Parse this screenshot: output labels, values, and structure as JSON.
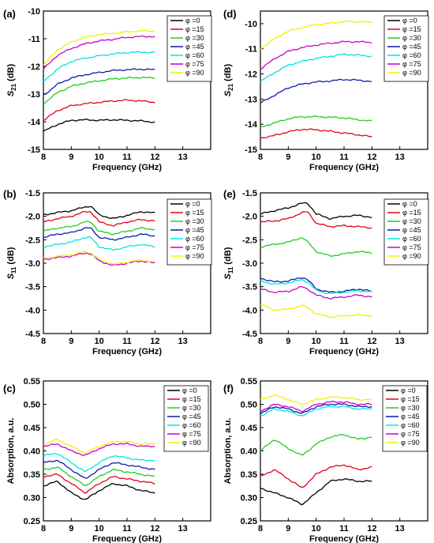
{
  "legend_labels": [
    "φ =0",
    "φ =15",
    "φ =30",
    "φ =45",
    "φ =60",
    "φ =75",
    "φ =90"
  ],
  "series_colors": [
    "#000000",
    "#e3001b",
    "#22cc22",
    "#0a1aa8",
    "#00e5e5",
    "#cc00cc",
    "#f2f200"
  ],
  "chart_data": [
    {
      "panel": "(a)",
      "type": "line",
      "xlabel": "Frequency (GHz)",
      "ylabel": "S21 (dB)",
      "ylabel_main": "S",
      "ylabel_sub": "21",
      "ylabel_unit": " (dB)",
      "xlim": [
        8,
        14
      ],
      "ylim": [
        -15,
        -10
      ],
      "xticks": [
        8,
        9,
        10,
        11,
        12,
        13
      ],
      "yticks": [
        -15,
        -14,
        -13,
        -12,
        -11,
        -10
      ],
      "legend_position": "top-right",
      "x": [
        8,
        8.5,
        9,
        9.5,
        10,
        10.5,
        11,
        11.5,
        12
      ],
      "series": [
        {
          "name": "φ =0",
          "values": [
            -14.35,
            -14.1,
            -13.95,
            -13.93,
            -13.95,
            -13.93,
            -13.95,
            -13.97,
            -14.02
          ]
        },
        {
          "name": "φ =15",
          "values": [
            -13.95,
            -13.6,
            -13.42,
            -13.35,
            -13.3,
            -13.25,
            -13.22,
            -13.25,
            -13.3
          ]
        },
        {
          "name": "φ =30",
          "values": [
            -13.35,
            -12.95,
            -12.72,
            -12.6,
            -12.52,
            -12.45,
            -12.42,
            -12.4,
            -12.42
          ]
        },
        {
          "name": "φ =45",
          "values": [
            -13.05,
            -12.65,
            -12.42,
            -12.3,
            -12.22,
            -12.15,
            -12.12,
            -12.1,
            -12.12
          ]
        },
        {
          "name": "φ =60",
          "values": [
            -12.55,
            -12.1,
            -11.82,
            -11.7,
            -11.62,
            -11.55,
            -11.5,
            -11.48,
            -11.5
          ]
        },
        {
          "name": "φ =75",
          "values": [
            -12.1,
            -11.6,
            -11.35,
            -11.18,
            -11.08,
            -11.02,
            -10.95,
            -10.92,
            -10.92
          ]
        },
        {
          "name": "φ =90",
          "values": [
            -11.95,
            -11.4,
            -11.12,
            -10.95,
            -10.85,
            -10.8,
            -10.75,
            -10.72,
            -10.72
          ]
        }
      ]
    },
    {
      "panel": "(d)",
      "type": "line",
      "xlabel": "Frequency (GHz)",
      "ylabel": "S21 (dB)",
      "ylabel_main": "S",
      "ylabel_sub": "21",
      "ylabel_unit": " (dB)",
      "xlim": [
        8,
        14
      ],
      "ylim": [
        -15,
        -9.5
      ],
      "xticks": [
        8,
        9,
        10,
        11,
        12,
        13
      ],
      "yticks": [
        -15,
        -14,
        -13,
        -12,
        -11,
        -10
      ],
      "legend_position": "top-right",
      "x": [
        8,
        8.5,
        9,
        9.5,
        10,
        10.5,
        11,
        11.5,
        12
      ],
      "series": [
        {
          "name": "φ =0",
          "values": [
            null,
            null,
            null,
            null,
            null,
            null,
            null,
            null,
            null
          ]
        },
        {
          "name": "φ =15",
          "values": [
            -14.55,
            -14.45,
            -14.3,
            -14.2,
            -14.22,
            -14.28,
            -14.35,
            -14.42,
            -14.5
          ]
        },
        {
          "name": "φ =30",
          "values": [
            -14.12,
            -13.95,
            -13.78,
            -13.7,
            -13.7,
            -13.72,
            -13.75,
            -13.82,
            -13.88
          ]
        },
        {
          "name": "φ =45",
          "values": [
            -13.15,
            -12.85,
            -12.55,
            -12.4,
            -12.32,
            -12.28,
            -12.22,
            -12.25,
            -12.3
          ]
        },
        {
          "name": "φ =60",
          "values": [
            -12.3,
            -11.95,
            -11.65,
            -11.5,
            -11.38,
            -11.3,
            -11.22,
            -11.25,
            -11.3
          ]
        },
        {
          "name": "φ =75",
          "values": [
            -11.8,
            -11.4,
            -11.1,
            -10.95,
            -10.85,
            -10.78,
            -10.72,
            -10.72,
            -10.75
          ]
        },
        {
          "name": "φ =90",
          "values": [
            -11.0,
            -10.6,
            -10.3,
            -10.15,
            -10.05,
            -9.98,
            -9.92,
            -9.92,
            -9.95
          ]
        }
      ]
    },
    {
      "panel": "(b)",
      "type": "line",
      "xlabel": "Frequency (GHz)",
      "ylabel": "S11 (dB)",
      "ylabel_main": "S",
      "ylabel_sub": "11",
      "ylabel_unit": " (dB)",
      "xlim": [
        8,
        14
      ],
      "ylim": [
        -4.5,
        -1.5
      ],
      "xticks": [
        8,
        9,
        10,
        11,
        12,
        13
      ],
      "yticks": [
        -4.5,
        -4.0,
        -3.5,
        -3.0,
        -2.5,
        -2.0,
        -1.5
      ],
      "legend_position": "top-right",
      "x": [
        8,
        8.5,
        9,
        9.5,
        9.7,
        10,
        10.5,
        11,
        11.5,
        12
      ],
      "series": [
        {
          "name": "φ =0",
          "values": [
            -1.97,
            -1.92,
            -1.88,
            -1.8,
            -1.78,
            -1.97,
            -2.05,
            -1.98,
            -1.9,
            -1.93
          ]
        },
        {
          "name": "φ =15",
          "values": [
            -2.12,
            -2.05,
            -2.0,
            -1.9,
            -1.9,
            -2.12,
            -2.2,
            -2.12,
            -2.07,
            -2.1
          ]
        },
        {
          "name": "φ =30",
          "values": [
            -2.32,
            -2.25,
            -2.22,
            -2.12,
            -2.12,
            -2.32,
            -2.38,
            -2.32,
            -2.25,
            -2.28
          ]
        },
        {
          "name": "φ =45",
          "values": [
            -2.45,
            -2.38,
            -2.35,
            -2.25,
            -2.25,
            -2.45,
            -2.5,
            -2.45,
            -2.38,
            -2.42
          ]
        },
        {
          "name": "φ =60",
          "values": [
            -2.65,
            -2.6,
            -2.55,
            -2.45,
            -2.45,
            -2.65,
            -2.72,
            -2.65,
            -2.6,
            -2.65
          ]
        },
        {
          "name": "φ =75",
          "values": [
            -2.92,
            -2.88,
            -2.85,
            -2.78,
            -2.8,
            -2.95,
            -3.05,
            -3.0,
            -2.95,
            -3.0
          ]
        },
        {
          "name": "φ =90",
          "values": [
            -2.9,
            -2.85,
            -2.82,
            -2.75,
            -2.78,
            -2.92,
            -3.02,
            -2.98,
            -2.93,
            -2.98
          ]
        }
      ]
    },
    {
      "panel": "(e)",
      "type": "line",
      "xlabel": "Frequency (GHz)",
      "ylabel": "S11 (dB)",
      "ylabel_main": "S",
      "ylabel_sub": "11",
      "ylabel_unit": " (dB)",
      "xlim": [
        8,
        14
      ],
      "ylim": [
        -4.5,
        -1.5
      ],
      "xticks": [
        8,
        9,
        10,
        11,
        12,
        13
      ],
      "yticks": [
        -4.5,
        -4.0,
        -3.5,
        -3.0,
        -2.5,
        -2.0,
        -1.5
      ],
      "legend_position": "top-right",
      "x": [
        8,
        8.5,
        9,
        9.5,
        9.7,
        10,
        10.5,
        11,
        11.5,
        12
      ],
      "series": [
        {
          "name": "φ =0",
          "values": [
            -1.95,
            -1.88,
            -1.82,
            -1.72,
            -1.72,
            -1.95,
            -2.05,
            -2.0,
            -1.98,
            -2.02
          ]
        },
        {
          "name": "φ =15",
          "values": [
            -2.12,
            -2.1,
            -2.05,
            -1.92,
            -1.9,
            -2.15,
            -2.22,
            -2.2,
            -2.22,
            -2.25
          ]
        },
        {
          "name": "φ =30",
          "values": [
            -2.65,
            -2.6,
            -2.55,
            -2.45,
            -2.55,
            -2.75,
            -2.85,
            -2.8,
            -2.75,
            -2.78
          ]
        },
        {
          "name": "φ =45",
          "values": [
            -3.32,
            -3.4,
            -3.38,
            -3.3,
            -3.35,
            -3.55,
            -3.62,
            -3.6,
            -3.55,
            -3.6
          ]
        },
        {
          "name": "φ =60",
          "values": [
            -3.38,
            -3.45,
            -3.42,
            -3.35,
            -3.4,
            -3.58,
            -3.65,
            -3.62,
            -3.58,
            -3.62
          ]
        },
        {
          "name": "φ =75",
          "values": [
            -3.55,
            -3.62,
            -3.6,
            -3.5,
            -3.55,
            -3.68,
            -3.75,
            -3.72,
            -3.68,
            -3.72
          ]
        },
        {
          "name": "φ =90",
          "values": [
            -3.88,
            -4.0,
            -3.98,
            -3.9,
            -3.95,
            -4.08,
            -4.15,
            -4.12,
            -4.1,
            -4.12
          ]
        }
      ]
    },
    {
      "panel": "(c)",
      "type": "line",
      "xlabel": "Frequency (GHz)",
      "ylabel": "Absorption, a.u.",
      "xlim": [
        8,
        14
      ],
      "ylim": [
        0.25,
        0.55
      ],
      "xticks": [
        8,
        9,
        10,
        11,
        12,
        13
      ],
      "yticks": [
        0.25,
        0.3,
        0.35,
        0.4,
        0.45,
        0.5,
        0.55
      ],
      "legend_position": "top-right",
      "x": [
        8,
        8.5,
        9,
        9.5,
        10,
        10.5,
        11,
        11.5,
        12
      ],
      "series": [
        {
          "name": "φ =0",
          "values": [
            0.325,
            0.335,
            0.31,
            0.295,
            0.315,
            0.33,
            0.325,
            0.315,
            0.31
          ]
        },
        {
          "name": "φ =15",
          "values": [
            0.345,
            0.35,
            0.33,
            0.31,
            0.33,
            0.345,
            0.34,
            0.335,
            0.33
          ]
        },
        {
          "name": "φ =30",
          "values": [
            0.36,
            0.365,
            0.345,
            0.325,
            0.345,
            0.36,
            0.355,
            0.35,
            0.345
          ]
        },
        {
          "name": "φ =45",
          "values": [
            0.375,
            0.38,
            0.36,
            0.34,
            0.36,
            0.375,
            0.37,
            0.365,
            0.36
          ]
        },
        {
          "name": "φ =60",
          "values": [
            0.39,
            0.395,
            0.375,
            0.355,
            0.375,
            0.39,
            0.385,
            0.38,
            0.38
          ]
        },
        {
          "name": "φ =75",
          "values": [
            0.41,
            0.415,
            0.4,
            0.39,
            0.405,
            0.415,
            0.415,
            0.41,
            0.41
          ]
        },
        {
          "name": "φ =90",
          "values": [
            0.415,
            0.425,
            0.41,
            0.395,
            0.41,
            0.42,
            0.42,
            0.415,
            0.415
          ]
        }
      ]
    },
    {
      "panel": "(f)",
      "type": "line",
      "xlabel": "Frequency (GHz)",
      "ylabel": "Absorption, a.u.",
      "xlim": [
        8,
        14
      ],
      "ylim": [
        0.25,
        0.55
      ],
      "xticks": [
        8,
        9,
        10,
        11,
        12,
        13
      ],
      "yticks": [
        0.25,
        0.3,
        0.35,
        0.4,
        0.45,
        0.5,
        0.55
      ],
      "legend_position": "top-right",
      "x": [
        8,
        8.5,
        9,
        9.5,
        10,
        10.5,
        11,
        11.5,
        12
      ],
      "series": [
        {
          "name": "φ =0",
          "values": [
            0.32,
            0.31,
            0.3,
            0.285,
            0.31,
            0.335,
            0.34,
            0.335,
            0.335
          ]
        },
        {
          "name": "φ =15",
          "values": [
            0.345,
            0.36,
            0.34,
            0.32,
            0.35,
            0.365,
            0.37,
            0.36,
            0.365
          ]
        },
        {
          "name": "φ =30",
          "values": [
            0.4,
            0.425,
            0.405,
            0.39,
            0.415,
            0.43,
            0.435,
            0.425,
            0.43
          ]
        },
        {
          "name": "φ =45",
          "values": [
            0.48,
            0.495,
            0.49,
            0.48,
            0.495,
            0.5,
            0.5,
            0.495,
            0.495
          ]
        },
        {
          "name": "φ =60",
          "values": [
            0.475,
            0.49,
            0.485,
            0.475,
            0.49,
            0.495,
            0.495,
            0.49,
            0.49
          ]
        },
        {
          "name": "φ =75",
          "values": [
            0.485,
            0.5,
            0.495,
            0.485,
            0.5,
            0.505,
            0.505,
            0.5,
            0.5
          ]
        },
        {
          "name": "φ =90",
          "values": [
            0.51,
            0.52,
            0.51,
            0.5,
            0.51,
            0.515,
            0.515,
            0.51,
            0.51
          ]
        }
      ]
    }
  ]
}
